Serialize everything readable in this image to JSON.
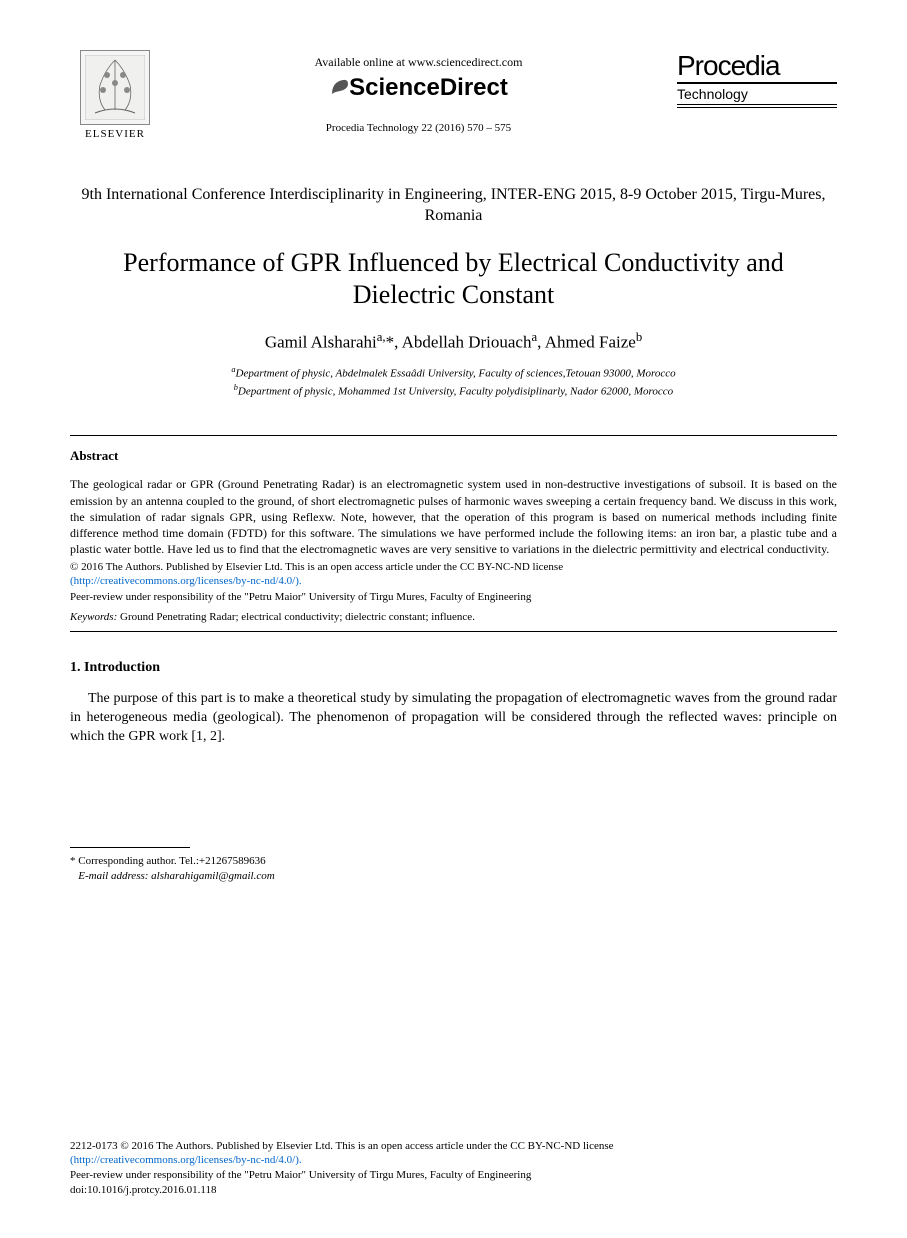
{
  "header": {
    "elsevier_label": "ELSEVIER",
    "available_online": "Available online at www.sciencedirect.com",
    "sciencedirect": "ScienceDirect",
    "citation": "Procedia Technology 22 (2016) 570 – 575",
    "procedia_title": "Procedia",
    "procedia_subtitle": "Technology"
  },
  "conference": "9th International Conference Interdisciplinarity in Engineering, INTER-ENG 2015, 8-9 October 2015, Tirgu-Mures, Romania",
  "title": "Performance of GPR Influenced by Electrical Conductivity and Dielectric Constant",
  "authors_html": "Gamil Alsharahi<sup>a,</sup>*, Abdellah Driouach<sup>a</sup>, Ahmed Faize<sup>b</sup>",
  "affiliations": {
    "a": "aDepartment of physic, Abdelmalek Essaâdi University, Faculty of sciences,Tetouan 93000,  Morocco",
    "b": "bDepartment of physic, Mohammed 1st University, Faculty polydisiplinarly, Nador 62000, Morocco"
  },
  "abstract": {
    "heading": "Abstract",
    "text": "The geological radar or GPR (Ground Penetrating Radar) is an electromagnetic system used in non-destructive investigations of subsoil. It is based on the emission by an antenna coupled to the ground, of short electromagnetic pulses of harmonic waves sweeping a certain frequency band. We discuss in this work, the simulation of radar signals GPR, using Reflexw. Note, however, that the operation of this program is based on numerical methods including finite difference method time domain (FDTD) for this software. The simulations we have performed include the following items: an iron bar, a plastic tube and a plastic water bottle. Have led us to find that the electromagnetic waves are very sensitive to variations in the dielectric permittivity and electrical conductivity.",
    "copyright1": "© 2016 The Authors. Published by Elsevier Ltd. This is an open access article under the CC BY-NC-ND license",
    "license_url": "(http://creativecommons.org/licenses/by-nc-nd/4.0/).",
    "peer_review": "Peer-review under responsibility of the \"Petru Maior\" University of Tirgu Mures, Faculty of Engineering"
  },
  "keywords": {
    "label": "Keywords:",
    "text": " Ground Penetrating Radar; electrical conductivity; dielectric constant; influence."
  },
  "section1": {
    "heading": "1. Introduction",
    "para": "The purpose of this part is to make a theoretical study by simulating the propagation of electromagnetic waves from the ground radar in heterogeneous media (geological). The phenomenon of propagation will be considered through the reflected waves: principle on which the GPR work [1, 2]."
  },
  "footnote": {
    "corresponding": "* Corresponding author. Tel.:+21267589636",
    "email_label": "E-mail address:",
    "email": " alsharahigamil@gmail.com"
  },
  "footer": {
    "line1": "2212-0173 © 2016 The Authors. Published by Elsevier Ltd. This is an open access article under the CC BY-NC-ND license",
    "license_url": "(http://creativecommons.org/licenses/by-nc-nd/4.0/).",
    "peer_review": "Peer-review under responsibility of the \"Petru Maior\" University of Tirgu Mures, Faculty of Engineering",
    "doi": "doi:10.1016/j.protcy.2016.01.118"
  },
  "colors": {
    "text": "#000000",
    "link": "#0066cc",
    "background": "#ffffff"
  },
  "fonts": {
    "body_family": "Times New Roman",
    "header_family": "Arial",
    "title_size_pt": 20,
    "body_size_pt": 11,
    "abstract_size_pt": 9,
    "footnote_size_pt": 8
  }
}
